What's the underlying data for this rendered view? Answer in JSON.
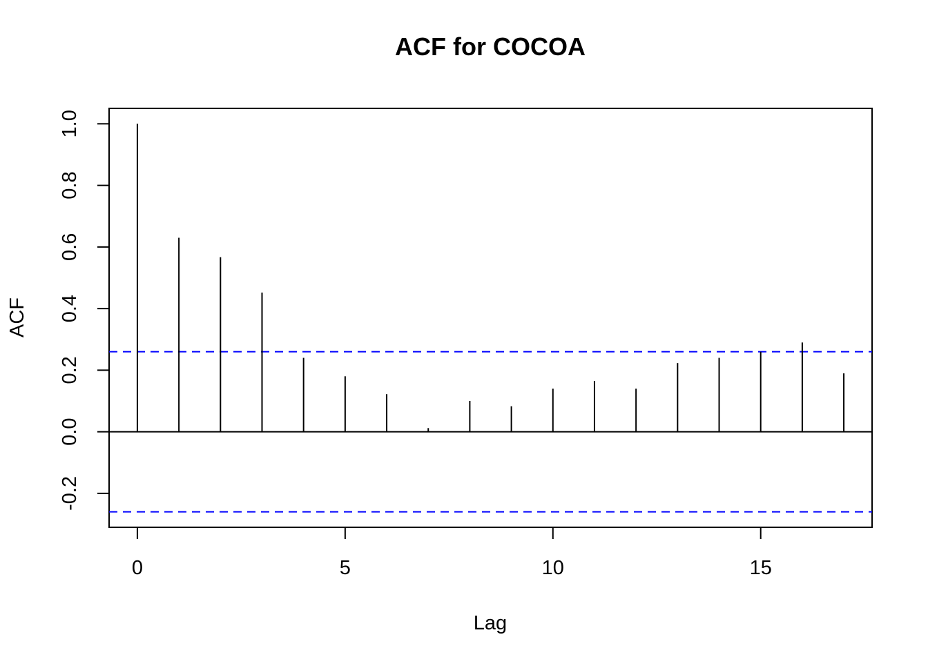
{
  "chart_data": {
    "type": "bar",
    "subtype": "acf-lag-plot",
    "title": "ACF for COCOA",
    "xlabel": "Lag",
    "ylabel": "ACF",
    "xlim": [
      -0.68,
      17.68
    ],
    "ylim": [
      -0.31,
      1.05
    ],
    "x_ticks": [
      0,
      5,
      10,
      15
    ],
    "x_tick_labels": [
      "0",
      "5",
      "10",
      "15"
    ],
    "y_ticks": [
      -0.2,
      0.0,
      0.2,
      0.4,
      0.6,
      0.8,
      1.0
    ],
    "y_tick_labels": [
      "-0.2",
      "0.0",
      "0.2",
      "0.4",
      "0.6",
      "0.8",
      "1.0"
    ],
    "grid": false,
    "legend": "none",
    "lags": [
      0,
      1,
      2,
      3,
      4,
      5,
      6,
      7,
      8,
      9,
      10,
      11,
      12,
      13,
      14,
      15,
      16,
      17
    ],
    "values": [
      1.0,
      0.63,
      0.567,
      0.452,
      0.24,
      0.18,
      0.122,
      0.012,
      0.1,
      0.083,
      0.14,
      0.165,
      0.14,
      0.223,
      0.24,
      0.26,
      0.29,
      0.19
    ],
    "confidence_bounds": [
      0.26,
      -0.26
    ],
    "zero_line": 0.0,
    "colors": {
      "bars": "#000000",
      "axes": "#000000",
      "confidence": "#0000ff"
    }
  }
}
